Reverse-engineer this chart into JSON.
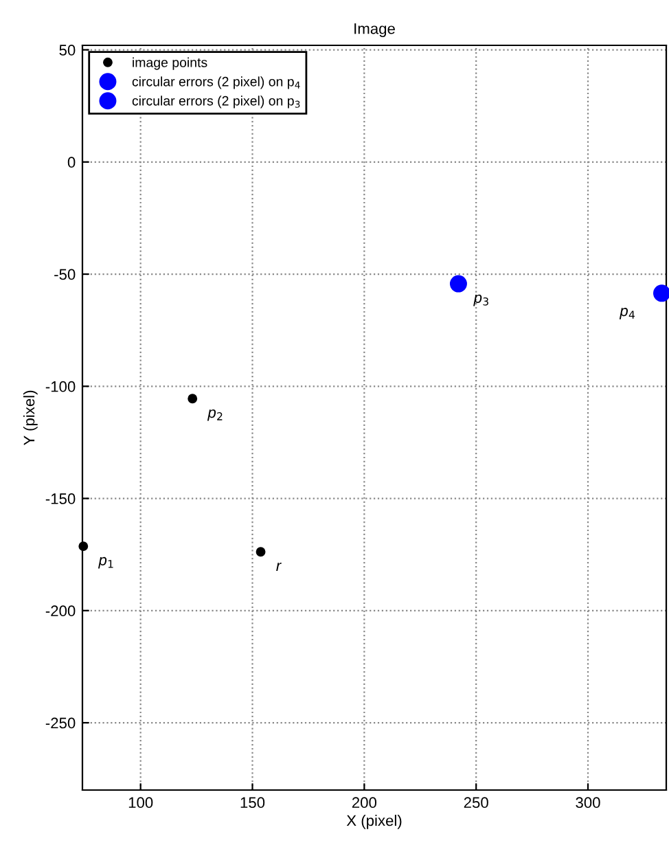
{
  "chart_data": {
    "type": "scatter",
    "title": "Image",
    "xlabel": "X (pixel)",
    "ylabel": "Y (pixel)",
    "xlim": [
      74,
      335
    ],
    "ylim": [
      -280,
      52
    ],
    "xticks": [
      100,
      150,
      200,
      250,
      300
    ],
    "yticks": [
      -250,
      -200,
      -150,
      -100,
      -50,
      0,
      50
    ],
    "grid": true,
    "legend": "top left",
    "marker": "circle",
    "series": [
      {
        "name": "image points",
        "color": "#000000",
        "x": [
          74.4,
          123.2,
          153.7
        ],
        "values": [
          -171.3,
          -105.5,
          -173.8
        ]
      },
      {
        "name": "circular errors (2 pixel) on p$_{4}$",
        "color": "#0000ff",
        "x": [
          333
        ],
        "values": [
          -58.5
        ]
      },
      {
        "name": "circular errors (2 pixel) on p$_{3}$",
        "color": "#0000ff",
        "x": [
          242.1
        ],
        "values": [
          -54.3
        ]
      }
    ],
    "annotations": [
      {
        "text": "p$_{1}$",
        "x": 74.4,
        "y": -171.3
      },
      {
        "text": "p$_{2}$",
        "x": 123.2,
        "y": -105.5
      },
      {
        "text": "r",
        "x": 153.7,
        "y": -173.8
      },
      {
        "text": "p$_{3}$",
        "x": 242.1,
        "y": -54.3
      },
      {
        "text": "p$_{4}$",
        "x": 333,
        "y": -58.5
      }
    ]
  }
}
